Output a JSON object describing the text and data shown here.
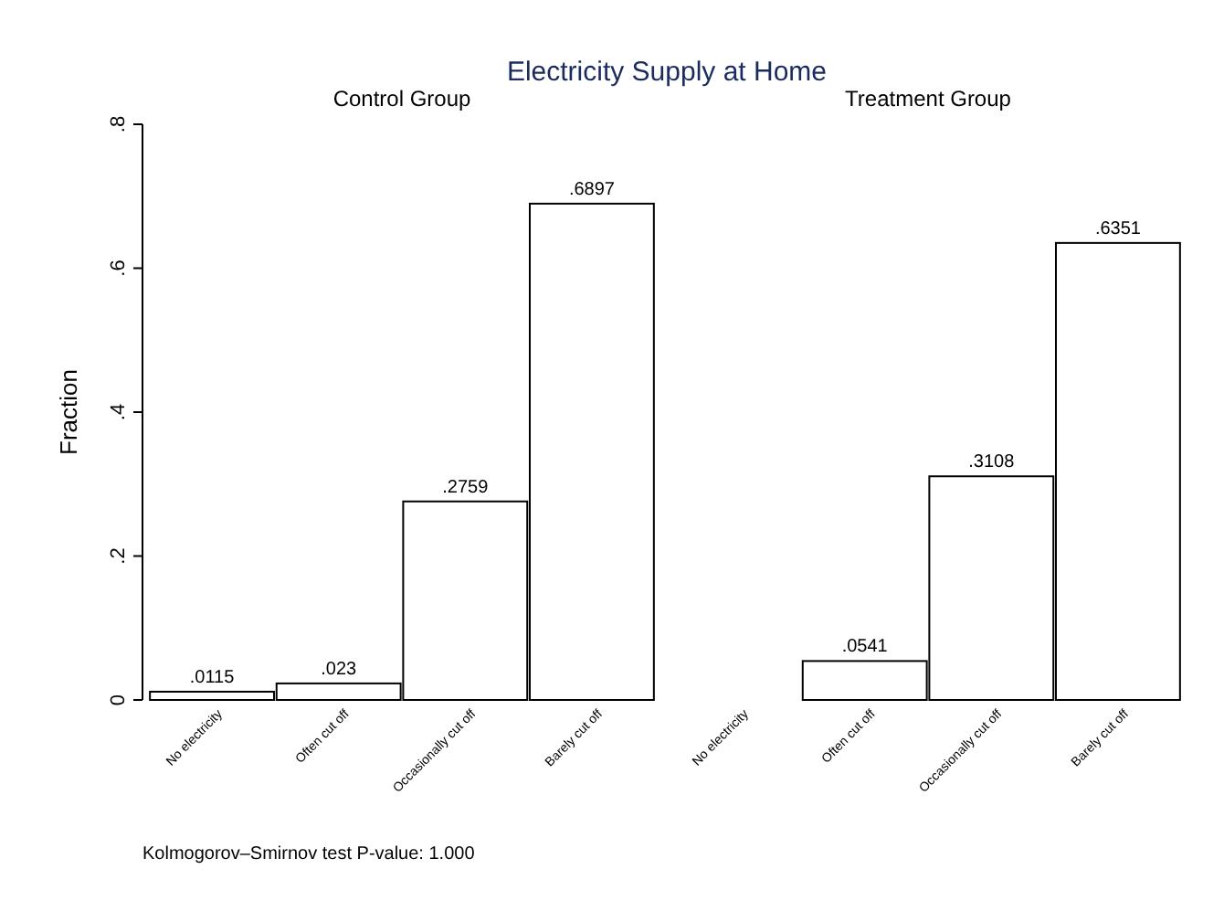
{
  "chart_data": [
    {
      "type": "bar",
      "title": "Electricity Supply at Home",
      "subtitle": "Control Group",
      "ylabel": "Fraction",
      "categories": [
        "No electricity",
        "Often cut off",
        "Occasionally cut off",
        "Barely cut off"
      ],
      "values": [
        0.0115,
        0.023,
        0.2759,
        0.6897
      ],
      "value_labels": [
        ".0115",
        ".023",
        ".2759",
        ".6897"
      ],
      "color": "#ffffff",
      "ylim": [
        0,
        0.8
      ],
      "yticks": [
        0,
        {
          "value": 0.2,
          "label": ".2"
        },
        {
          "value": 0.4,
          "label": ".4"
        },
        {
          "value": 0.6,
          "label": ".6"
        },
        {
          "value": 0.8,
          "label": ".8"
        }
      ],
      "annotations": [
        "Kolmogorov–Smirnov test P-value: 1.000"
      ]
    },
    {
      "type": "bar",
      "subtitle": "Treatment Group",
      "categories": [
        "No electricity",
        "Often cut off",
        "Occasionally cut off",
        "Barely cut off"
      ],
      "values": [
        0,
        0.0541,
        0.3108,
        0.6351
      ],
      "value_labels": [
        null,
        ".0541",
        ".3108",
        ".6351"
      ],
      "color": "#ffffff",
      "ylim": [
        0,
        0.8
      ],
      "tick_labels": "x"
    }
  ]
}
